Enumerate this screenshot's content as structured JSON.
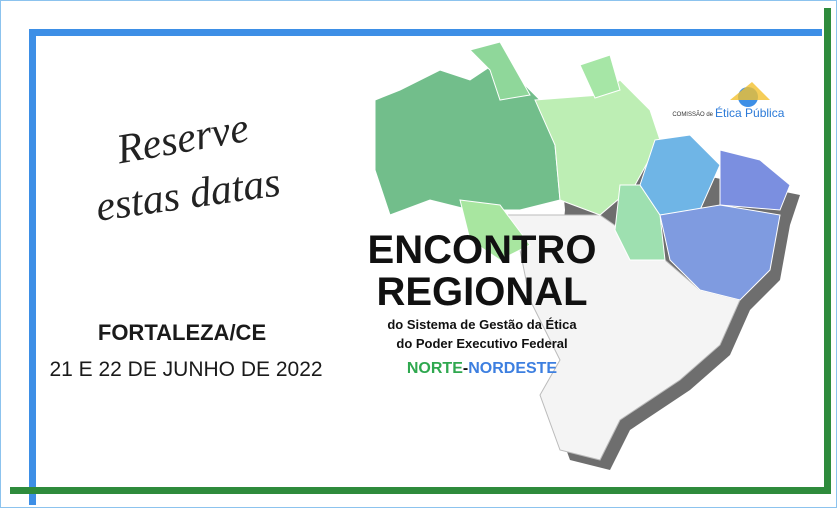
{
  "reserve": {
    "line1": "Reserve",
    "line2": "estas datas"
  },
  "location": "FORTALEZA/CE",
  "dates": "21 E 22 DE JUNHO DE 2022",
  "event": {
    "title1": "ENCONTRO",
    "title2": "REGIONAL",
    "subtitle1": "do Sistema de Gestão da Ética",
    "subtitle2": "do Poder Executivo Federal",
    "region": {
      "north": "NORTE",
      "separator": "-",
      "northeast": "NORDESTE"
    }
  },
  "logo": {
    "prefix": "COMISSÃO de",
    "name": "Ética Pública"
  }
}
